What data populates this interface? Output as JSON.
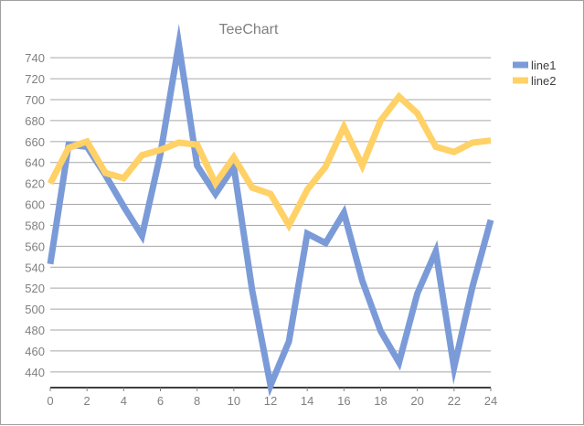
{
  "chart_data": {
    "type": "line",
    "title": "TeeChart",
    "xlabel": "",
    "ylabel": "",
    "xlim": [
      0,
      24
    ],
    "ylim": [
      425,
      755
    ],
    "x": [
      0,
      1,
      2,
      3,
      4,
      5,
      6,
      7,
      8,
      9,
      10,
      11,
      12,
      13,
      14,
      15,
      16,
      17,
      18,
      19,
      20,
      21,
      22,
      23,
      24
    ],
    "x_ticks": [
      0,
      2,
      4,
      6,
      8,
      10,
      12,
      14,
      16,
      18,
      20,
      22,
      24
    ],
    "y_ticks": [
      440,
      460,
      480,
      500,
      520,
      540,
      560,
      580,
      600,
      620,
      640,
      660,
      680,
      700,
      720,
      740
    ],
    "grid": "horizontal",
    "legend_position": "top-right",
    "series": [
      {
        "name": "line1",
        "color": "#7B9BD8",
        "values": [
          543,
          657,
          655,
          628,
          598,
          570,
          648,
          753,
          637,
          610,
          636,
          518,
          427,
          469,
          572,
          563,
          592,
          527,
          479,
          449,
          515,
          555,
          444,
          521,
          585
        ]
      },
      {
        "name": "line2",
        "color": "#FFD166",
        "values": [
          620,
          654,
          660,
          630,
          625,
          647,
          652,
          659,
          657,
          620,
          645,
          616,
          610,
          580,
          614,
          636,
          674,
          637,
          680,
          703,
          687,
          655,
          650,
          659,
          661
        ]
      }
    ]
  }
}
